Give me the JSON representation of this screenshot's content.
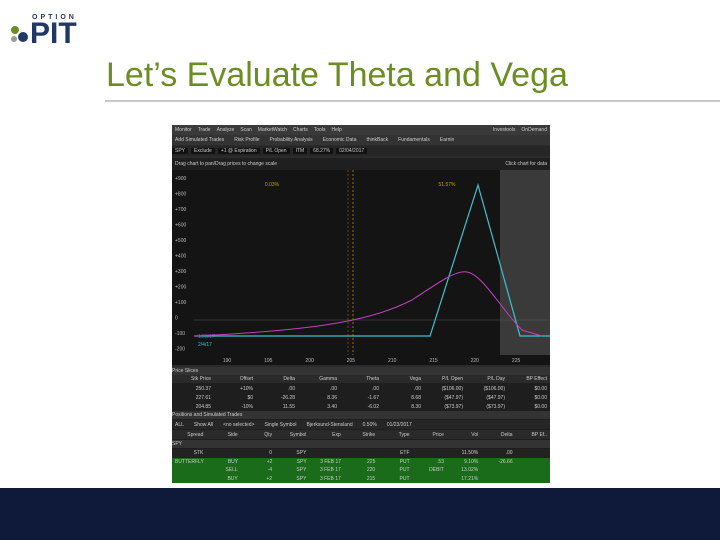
{
  "logo": {
    "top": "OPTION",
    "bottom": "PIT"
  },
  "title": "Let’s Evaluate Theta and Vega",
  "app": {
    "menu": [
      "Monitor",
      "Trade",
      "Analyze",
      "Scan",
      "MarketWatch",
      "Charts",
      "Tools",
      "Help"
    ],
    "menu_right": [
      "Investools",
      "OnDemand"
    ],
    "tabs": [
      "Add Simulated Trades",
      "Risk Profile",
      "Probability Analysis",
      "Economic Data",
      "thinkBack",
      "Fundamentals",
      "Earnin"
    ],
    "controls": [
      "SPY",
      "Exclude",
      "+1 @ Expiration",
      "P/L Open",
      "ITM",
      "68.27%",
      "02/04/2017"
    ],
    "chart_hint_left": "Drag chart to pan/Drag prices to change scale",
    "chart_hint_right": "Click chart for data",
    "y_labels": [
      "+900",
      "+800",
      "+700",
      "+600",
      "+500",
      "+400",
      "+300",
      "+200",
      "+100",
      "0",
      "-100",
      "-200"
    ],
    "x_labels": [
      "190",
      "195",
      "200",
      "205",
      "210",
      "215",
      "220",
      "225"
    ],
    "prob_labels": [
      "0.03%",
      "51.57%"
    ],
    "dates": [
      "1/23/17",
      "2/4/17"
    ],
    "price_slices": {
      "title": "Price Slices",
      "header": [
        "Stk Price",
        "Offset",
        "Delta",
        "Gamma",
        "Theta",
        "Vega",
        "P/L Open",
        "P/L Day",
        "BP Effect"
      ],
      "rows": [
        [
          "250.37",
          "+10%",
          ".00",
          ".00",
          ".00",
          ".00",
          "($106.00)",
          "($106.00)",
          "$0.00"
        ],
        [
          "227.61",
          "$0",
          "-26.28",
          "8.36",
          "-1.67",
          "8.68",
          "($47.97)",
          "($47.97)",
          "$0.00"
        ],
        [
          "204.85",
          "-10%",
          "11.55",
          "3.40",
          "-6.02",
          "8.30",
          "($73.97)",
          "($73.97)",
          "$0.00"
        ]
      ]
    },
    "positions": {
      "title": "Positions and Simulated Trades",
      "filters": [
        "ALL",
        "Show All",
        "<no selected>",
        "Single Symbol",
        "Bjerksund-Stensland",
        "0.50%",
        "01/23/2017"
      ],
      "header": [
        "Spread",
        "Side",
        "Qty",
        "Symbol",
        "Exp",
        "Strike",
        "Type",
        "Price",
        "Vol",
        "Delta",
        "BP Ef.."
      ],
      "group": "SPY",
      "rows": [
        [
          "STK",
          "",
          "0",
          "SPY",
          "",
          "",
          "ETF",
          "",
          "11.50%",
          ".00",
          ""
        ],
        [
          "BUTTERFLY",
          "BUY",
          "+2",
          "SPY",
          "3 FEB 17",
          "225",
          "PUT",
          ".53",
          "9.10%",
          "-26.66",
          ""
        ],
        [
          "",
          "SELL",
          "-4",
          "SPY",
          "3 FEB 17",
          "220",
          "PUT",
          "DEBIT",
          "13.02%",
          "",
          ""
        ],
        [
          "",
          "BUY",
          "+2",
          "SPY",
          "3 FEB 17",
          "215",
          "PUT",
          "",
          "17.21%",
          "",
          ""
        ]
      ]
    }
  }
}
